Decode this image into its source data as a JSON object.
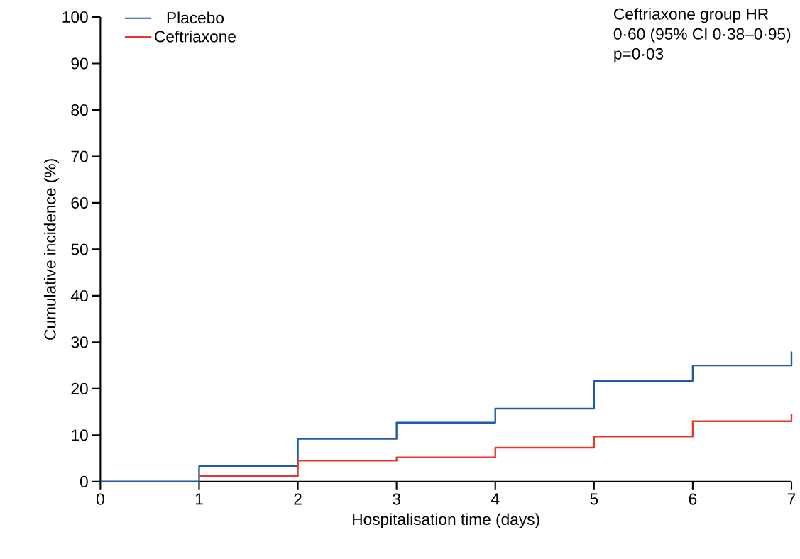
{
  "chart_data": {
    "type": "step",
    "xlabel": "Hospitalisation time (days)",
    "ylabel": "Cumulative incidence (%)",
    "xlim": [
      0,
      7
    ],
    "ylim": [
      0,
      100
    ],
    "xticks": [
      0,
      1,
      2,
      3,
      4,
      5,
      6,
      7
    ],
    "yticks": [
      0,
      10,
      20,
      30,
      40,
      50,
      60,
      70,
      80,
      90,
      100
    ],
    "series": [
      {
        "name": "Placebo",
        "color": "#1f5aa6",
        "x": [
          0,
          1,
          2,
          3,
          4,
          5,
          6,
          7,
          7
        ],
        "values": [
          0,
          3.3,
          9.2,
          12.7,
          15.7,
          21.7,
          25,
          25,
          28
        ]
      },
      {
        "name": "Ceftriaxone",
        "color": "#e8372a",
        "x": [
          1,
          2,
          3,
          4,
          5,
          6,
          7,
          7
        ],
        "values": [
          1.2,
          4.5,
          5.2,
          7.3,
          9.7,
          13,
          13,
          14.6
        ]
      }
    ],
    "legend": "top left",
    "grid": false,
    "annotations": [
      "Ceftriaxone group HR",
      "0·60 (95% CI 0·38–0·95)",
      "p=0·03"
    ]
  }
}
